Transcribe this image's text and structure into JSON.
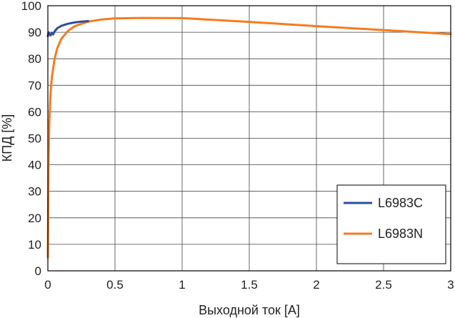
{
  "chart_data": {
    "type": "line",
    "title": "",
    "xlabel": "Выходной ток [A]",
    "ylabel": "КПД [%]",
    "xlim": [
      0,
      3
    ],
    "ylim": [
      0,
      100
    ],
    "x_ticks": [
      "0",
      "0.5",
      "1",
      "1.5",
      "2",
      "2.5",
      "3"
    ],
    "y_ticks": [
      "0",
      "10",
      "20",
      "30",
      "40",
      "50",
      "60",
      "70",
      "80",
      "90",
      "100"
    ],
    "grid": true,
    "legend_position": "bottom-right",
    "series": [
      {
        "name": "L6983C",
        "color": "#2e4da0",
        "x": [
          0.0,
          0.005,
          0.01,
          0.02,
          0.03,
          0.04,
          0.05,
          0.07,
          0.1,
          0.15,
          0.2,
          0.25,
          0.3
        ],
        "y": [
          88.5,
          90.0,
          89.5,
          88.8,
          89.8,
          89.2,
          90.3,
          91.5,
          92.4,
          93.2,
          93.7,
          94.0,
          94.2
        ]
      },
      {
        "name": "L6983N",
        "color": "#f47c20",
        "x": [
          0.0,
          0.005,
          0.01,
          0.02,
          0.03,
          0.05,
          0.07,
          0.1,
          0.15,
          0.2,
          0.3,
          0.4,
          0.5,
          0.7,
          1.0,
          1.5,
          2.0,
          2.5,
          3.0
        ],
        "y": [
          5,
          40,
          55,
          67,
          73,
          80,
          84,
          87.5,
          90.5,
          92.3,
          94.0,
          94.8,
          95.2,
          95.4,
          95.3,
          93.9,
          92.3,
          90.8,
          89.3
        ]
      }
    ]
  }
}
